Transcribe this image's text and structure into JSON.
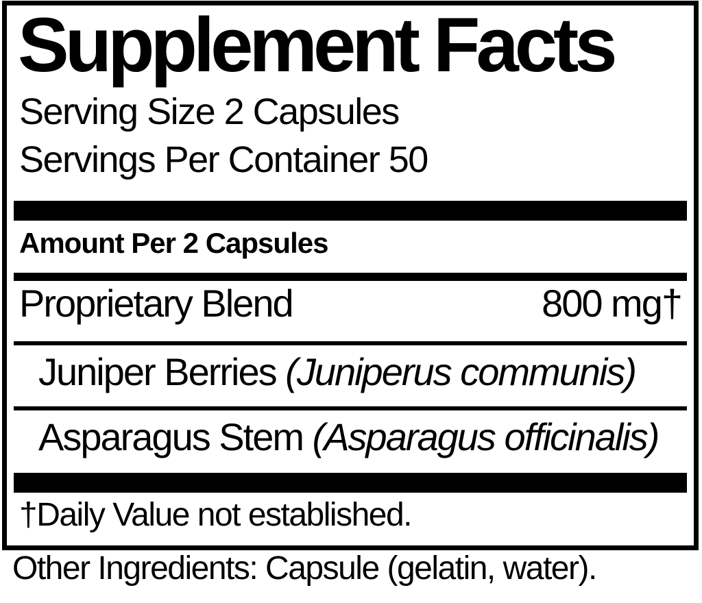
{
  "colors": {
    "ink": "#000000",
    "paper": "#ffffff"
  },
  "label": {
    "title": "Supplement Facts",
    "serving_size": "Serving Size 2 Capsules",
    "servings_per_container": "Servings Per Container 50",
    "amount_header": "Amount Per 2 Capsules",
    "blend": {
      "name": "Proprietary Blend",
      "amount": "800 mg†"
    },
    "ingredients": [
      {
        "name": "Juniper Berries ",
        "latin": "(Juniperus communis)"
      },
      {
        "name": "Asparagus Stem ",
        "latin": "(Asparagus officinalis)"
      }
    ],
    "footnote": "†Daily Value not established.",
    "other_ingredients": "Other Ingredients: Capsule (gelatin, water)."
  }
}
